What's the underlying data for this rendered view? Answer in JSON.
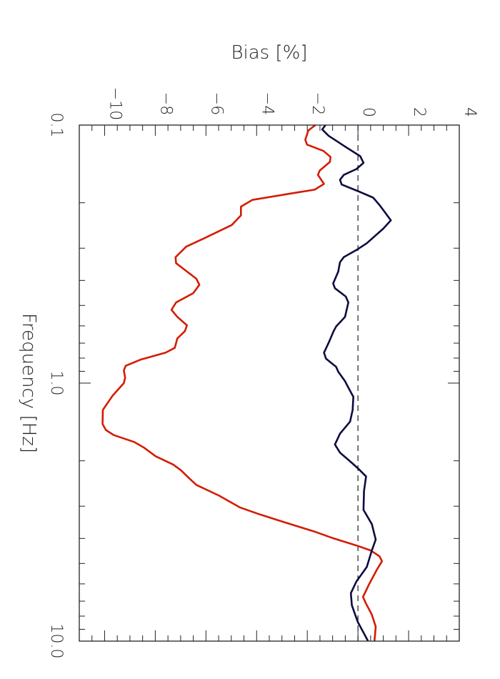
{
  "chart_data": {
    "type": "line",
    "orientation": "rotated 90° clockwise (frequency axis vertical, bias axis horizontal)",
    "xlabel": "Frequency [Hz]",
    "ylabel": "Bias [%]",
    "xscale": "log",
    "xlim": [
      0.1,
      10.0
    ],
    "ylim": [
      -11,
      4
    ],
    "x_ticks": [
      "0.1",
      "1.0",
      "10.0"
    ],
    "y_ticks": [
      "−10",
      "−8",
      "−6",
      "−4",
      "−2",
      "0",
      "2",
      "4"
    ],
    "y_tick_values": [
      -10,
      -8,
      -6,
      -4,
      -2,
      0,
      2,
      4
    ],
    "grid": false,
    "reference_line": {
      "y": 0,
      "style": "dashed",
      "color": "#222222"
    },
    "series": [
      {
        "color": "#d41c00",
        "x": [
          0.1,
          0.105,
          0.114,
          0.119,
          0.126,
          0.133,
          0.139,
          0.15,
          0.156,
          0.169,
          0.178,
          0.183,
          0.195,
          0.207,
          0.224,
          0.244,
          0.275,
          0.296,
          0.325,
          0.343,
          0.394,
          0.416,
          0.448,
          0.487,
          0.52,
          0.554,
          0.597,
          0.629,
          0.671,
          0.73,
          0.762,
          0.812,
          0.857,
          0.893,
          0.952,
          1.0,
          1.12,
          1.27,
          1.44,
          1.52,
          1.59,
          1.69,
          1.78,
          1.92,
          2.07,
          2.18,
          2.33,
          2.48,
          2.73,
          3.03,
          3.23,
          3.52,
          3.75,
          4.0,
          4.26,
          4.45,
          4.69,
          4.9,
          5.28,
          5.99,
          6.74,
          7.1,
          7.9,
          8.79,
          9.56,
          10.0
        ],
        "y": [
          -1.68,
          -1.96,
          -2.08,
          -2.01,
          -1.36,
          -1.08,
          -1.11,
          -1.51,
          -1.58,
          -1.34,
          -1.71,
          -2.47,
          -4.17,
          -4.62,
          -4.62,
          -4.98,
          -6.08,
          -6.78,
          -7.2,
          -7.18,
          -6.38,
          -6.26,
          -6.5,
          -7.18,
          -7.36,
          -7.13,
          -6.75,
          -6.83,
          -7.13,
          -7.23,
          -7.59,
          -8.59,
          -9.17,
          -9.24,
          -9.19,
          -9.24,
          -9.69,
          -10.07,
          -10.08,
          -9.95,
          -9.64,
          -8.84,
          -8.44,
          -7.99,
          -7.29,
          -6.98,
          -6.68,
          -6.38,
          -5.48,
          -4.67,
          -3.87,
          -2.67,
          -1.76,
          -0.96,
          -0.06,
          0.5,
          0.85,
          0.95,
          0.75,
          0.45,
          0.2,
          0.3,
          0.55,
          0.7,
          0.67,
          0.65
        ]
      },
      {
        "color": "#0c0c40",
        "x": [
          0.1,
          0.104,
          0.11,
          0.122,
          0.132,
          0.14,
          0.148,
          0.156,
          0.163,
          0.17,
          0.181,
          0.191,
          0.204,
          0.22,
          0.234,
          0.252,
          0.287,
          0.305,
          0.325,
          0.34,
          0.37,
          0.411,
          0.429,
          0.462,
          0.487,
          0.554,
          0.603,
          0.629,
          0.692,
          0.762,
          0.804,
          0.865,
          0.903,
          0.983,
          1.05,
          1.13,
          1.27,
          1.41,
          1.57,
          1.73,
          1.86,
          2.03,
          2.16,
          2.3,
          2.62,
          3.1,
          3.52,
          4.04,
          4.45,
          5.16,
          5.87,
          6.52,
          7.26,
          8.42,
          10.0
        ],
        "y": [
          -1.28,
          -1.41,
          -1.16,
          -0.46,
          0.09,
          0.22,
          -0.06,
          -0.56,
          -0.71,
          -0.64,
          0.04,
          0.6,
          0.85,
          1.1,
          1.3,
          1.0,
          0.35,
          -0.06,
          -0.56,
          -0.71,
          -0.78,
          -0.98,
          -0.91,
          -0.48,
          -0.38,
          -0.51,
          -0.86,
          -0.96,
          -1.14,
          -1.34,
          -1.26,
          -0.86,
          -0.78,
          -0.51,
          -0.36,
          -0.18,
          -0.21,
          -0.31,
          -0.71,
          -0.91,
          -0.71,
          -0.26,
          0.04,
          0.32,
          0.24,
          0.22,
          0.55,
          0.7,
          0.55,
          0.35,
          -0.06,
          -0.28,
          -0.24,
          -0.01,
          0.4
        ]
      }
    ]
  }
}
